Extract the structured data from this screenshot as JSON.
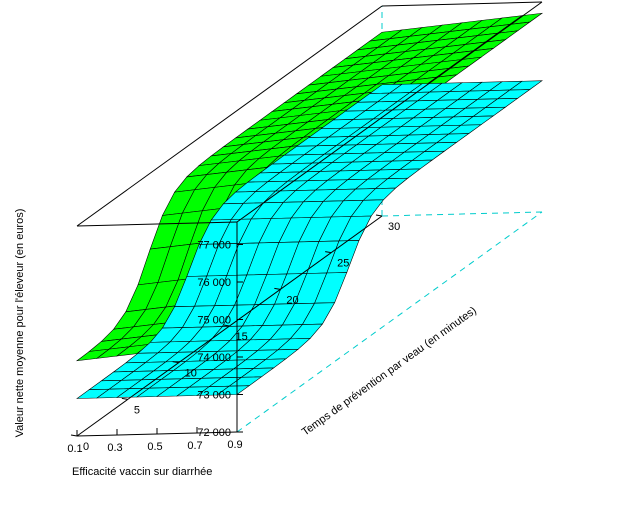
{
  "chart_data": {
    "type": "surface3d",
    "xlabel": "Efficacité vaccin sur diarrhée",
    "ylabel": "Temps de prévention par veau (en minutes)",
    "zlabel": "Valeur nette moyenne pour l'éleveur (en euros)",
    "x_ticks": [
      "0.9",
      "0.7",
      "0.5",
      "0.3",
      "0.1"
    ],
    "y_ticks": [
      "0",
      "5",
      "10",
      "15",
      "20",
      "25",
      "30"
    ],
    "z_ticks": [
      "72 000",
      "73 000",
      "74 000",
      "75 000",
      "76 000",
      "77 000"
    ],
    "xlim": [
      0.1,
      0.9
    ],
    "ylim": [
      0,
      30
    ],
    "zlim": [
      72000,
      77600
    ],
    "surfaces": [
      {
        "color": "#00ff00",
        "z_low": 74200,
        "z_high": 77100,
        "transition_time": 7,
        "slope_per_efficacy": 500
      },
      {
        "color": "#00ffff",
        "z_low": 73000,
        "z_high": 75500,
        "transition_time": 11,
        "slope_per_efficacy": 0
      }
    ]
  }
}
